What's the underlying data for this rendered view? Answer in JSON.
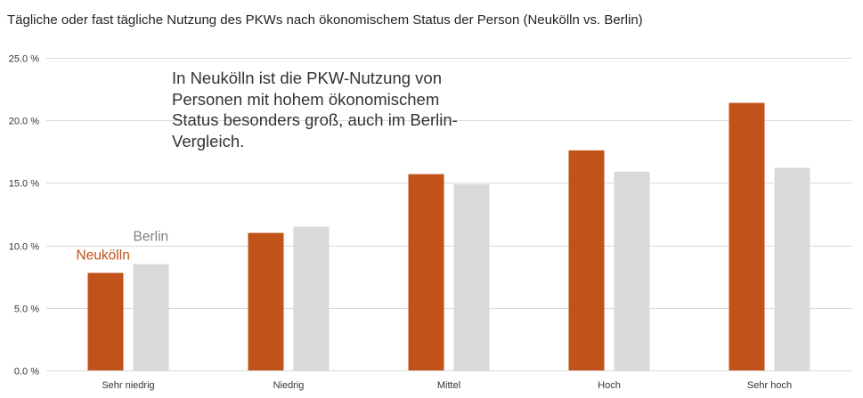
{
  "title": "Tägliche oder fast tägliche Nutzung des PKWs nach ökonomischem Status der Person (Neukölln vs. Berlin)",
  "annotation_lines": [
    "In Neukölln ist die PKW-Nutzung von",
    "Personen mit hohem ökonomischem",
    "Status besonders groß, auch im Berlin-",
    "Vergleich."
  ],
  "colors": {
    "neukoelln": "#C0521A",
    "berlin": "#D9D9D9",
    "berlin_label": "#808080",
    "grid": "#D9D9D9",
    "tick_text": "#333333"
  },
  "chart_data": {
    "type": "bar",
    "categories": [
      "Sehr niedrig",
      "Niedrig",
      "Mittel",
      "Hoch",
      "Sehr hoch"
    ],
    "series": [
      {
        "name": "Neukölln",
        "values": [
          7.8,
          11.0,
          15.7,
          17.6,
          21.4
        ]
      },
      {
        "name": "Berlin",
        "values": [
          8.5,
          11.5,
          14.9,
          15.9,
          16.2
        ]
      }
    ],
    "ylim": [
      0,
      25
    ],
    "yticks": [
      0,
      5,
      10,
      15,
      20,
      25
    ],
    "ytick_labels": [
      "0.0 %",
      "5.0 %",
      "10.0 %",
      "15.0 %",
      "20.0 %",
      "25.0 %"
    ],
    "grid": true,
    "legend": "labels placed next to first category bars"
  }
}
